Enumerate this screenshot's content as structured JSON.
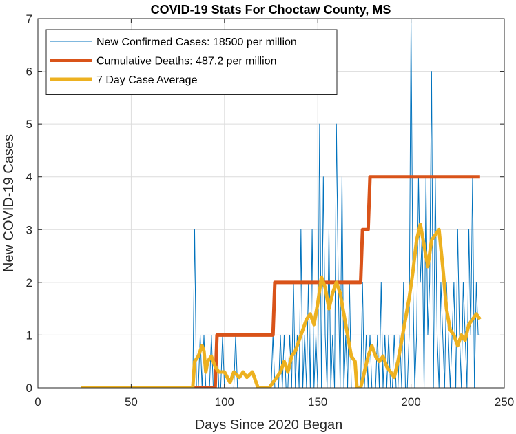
{
  "chart_data": {
    "type": "line",
    "title": "COVID-19 Stats For Choctaw County, MS",
    "xlabel": "Days Since 2020 Began",
    "ylabel": "New COVID-19 Cases",
    "xlim": [
      0,
      250
    ],
    "ylim": [
      0,
      7
    ],
    "xticks": [
      0,
      50,
      100,
      150,
      200,
      250
    ],
    "yticks": [
      0,
      1,
      2,
      3,
      4,
      5,
      6,
      7
    ],
    "grid": true,
    "legend_position": "top-left",
    "series": [
      {
        "name": "New Confirmed Cases: 18500 per million",
        "color": "#0072BD",
        "width": 1,
        "x": [
          23,
          83,
          84,
          85,
          86,
          87,
          88,
          89,
          90,
          91,
          92,
          93,
          94,
          95,
          96,
          97,
          98,
          99,
          100,
          101,
          102,
          103,
          104,
          105,
          106,
          107,
          108,
          109,
          110,
          111,
          112,
          113,
          114,
          115,
          116,
          117,
          118,
          119,
          120,
          121,
          122,
          123,
          124,
          125,
          126,
          127,
          128,
          129,
          130,
          131,
          132,
          133,
          134,
          135,
          136,
          137,
          138,
          139,
          140,
          141,
          142,
          143,
          144,
          145,
          146,
          147,
          148,
          149,
          150,
          151,
          152,
          153,
          154,
          155,
          156,
          157,
          158,
          159,
          160,
          161,
          162,
          163,
          164,
          165,
          166,
          167,
          168,
          169,
          170,
          171,
          172,
          173,
          174,
          175,
          176,
          177,
          178,
          179,
          180,
          181,
          182,
          183,
          184,
          185,
          186,
          187,
          188,
          189,
          190,
          191,
          192,
          193,
          194,
          195,
          196,
          197,
          198,
          199,
          200,
          201,
          202,
          203,
          204,
          205,
          206,
          207,
          208,
          209,
          210,
          211,
          212,
          213,
          214,
          215,
          216,
          217,
          218,
          219,
          220,
          221,
          222,
          223,
          224,
          225,
          226,
          227,
          228,
          229,
          230,
          231,
          232,
          233,
          234,
          235,
          236,
          237
        ],
        "values": [
          0,
          0,
          3,
          0,
          0,
          1,
          0,
          1,
          0,
          0,
          0,
          1,
          0,
          0,
          1,
          0,
          0,
          1,
          0,
          0,
          0,
          0,
          0,
          0,
          1,
          0,
          0,
          0,
          0,
          0,
          0,
          0,
          0,
          0,
          0,
          0,
          0,
          0,
          0,
          0,
          0,
          0,
          0,
          0,
          1,
          0,
          0,
          0,
          1,
          0,
          1,
          0,
          0,
          1,
          0,
          2,
          0,
          1,
          0,
          3,
          0,
          1,
          0,
          2,
          0,
          3,
          0,
          1,
          0,
          5,
          0,
          4,
          1,
          0,
          3,
          0,
          1,
          0,
          5,
          2,
          0,
          4,
          0,
          1,
          0,
          2,
          0,
          0,
          0,
          0,
          0,
          0,
          2,
          0,
          1,
          0,
          1,
          0,
          0,
          0,
          1,
          0,
          2,
          0,
          1,
          0,
          1,
          0,
          0,
          1,
          0,
          0,
          1,
          0,
          2,
          0,
          0,
          1,
          7,
          2,
          0,
          1,
          4,
          2,
          3,
          0,
          4,
          1,
          2,
          6,
          0,
          4,
          1,
          0,
          2,
          1,
          0,
          2,
          1,
          0,
          1,
          2,
          0,
          3,
          1,
          0,
          2,
          1,
          0,
          3,
          1,
          4,
          0,
          2,
          1,
          1
        ]
      },
      {
        "name": "Cumulative Deaths: 487.2 per million",
        "color": "#D95319",
        "width": 5,
        "x": [
          23,
          95,
          96,
          126,
          127,
          173,
          174,
          177,
          178,
          237
        ],
        "values": [
          0,
          0,
          1,
          1,
          2,
          2,
          3,
          3,
          4,
          4
        ]
      },
      {
        "name": "7 Day Case Average",
        "color": "#EDB120",
        "width": 5,
        "x": [
          23,
          83,
          84,
          86,
          88,
          89,
          90,
          91,
          93,
          95,
          97,
          100,
          103,
          105,
          108,
          110,
          112,
          115,
          117,
          118,
          120,
          122,
          124,
          126,
          128,
          130,
          132,
          134,
          136,
          138,
          140,
          142,
          144,
          146,
          148,
          150,
          152,
          154,
          156,
          158,
          160,
          162,
          164,
          166,
          168,
          170,
          171,
          173,
          175,
          177,
          179,
          181,
          183,
          185,
          187,
          189,
          191,
          193,
          195,
          197,
          199,
          201,
          203,
          205,
          207,
          209,
          211,
          213,
          215,
          217,
          219,
          221,
          223,
          225,
          227,
          229,
          231,
          233,
          235,
          237
        ],
        "values": [
          0,
          0,
          0.5,
          0.6,
          0.8,
          0.7,
          0.3,
          0.5,
          0.6,
          0.4,
          0.3,
          0.3,
          0.1,
          0.3,
          0.2,
          0.3,
          0.2,
          0.3,
          0.1,
          0,
          0,
          0,
          0,
          0.1,
          0.2,
          0.3,
          0.5,
          0.3,
          0.6,
          0.7,
          0.9,
          1.1,
          1.3,
          1.4,
          1.2,
          1.6,
          2.1,
          1.9,
          1.5,
          1.8,
          2.0,
          1.8,
          1.4,
          1.0,
          0.6,
          0.5,
          0,
          0,
          0.3,
          0.6,
          0.8,
          0.6,
          0.5,
          0.6,
          0.4,
          0.3,
          0.2,
          0.5,
          0.9,
          1.3,
          1.7,
          2.2,
          2.8,
          3.1,
          2.7,
          2.3,
          2.8,
          2.9,
          3.0,
          2.3,
          1.5,
          1.1,
          1.0,
          0.8,
          1.0,
          0.9,
          1.2,
          1.3,
          1.4,
          1.3
        ]
      }
    ]
  }
}
